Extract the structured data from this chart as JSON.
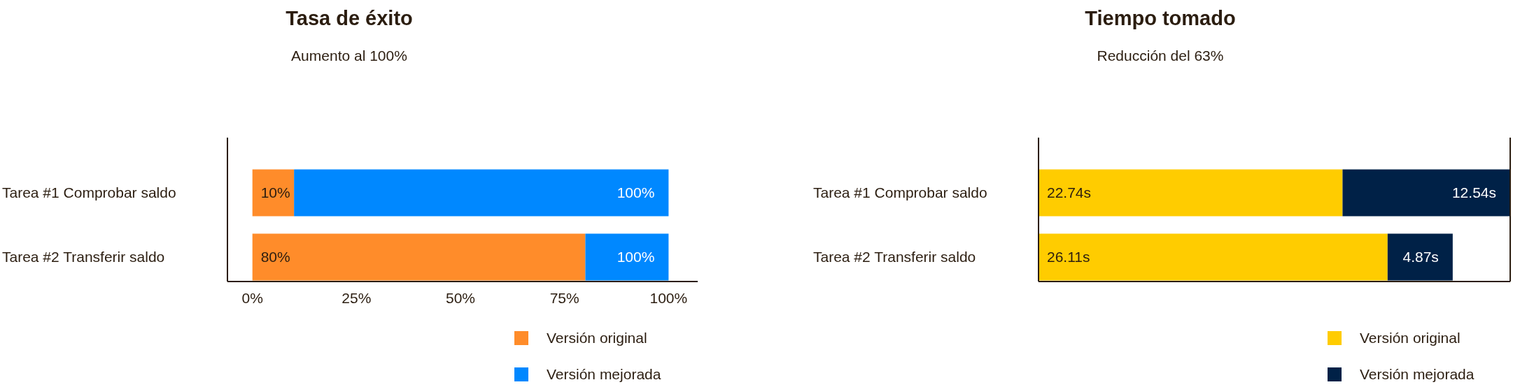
{
  "chart_data": [
    {
      "type": "bar",
      "orientation": "horizontal",
      "stacked": true,
      "title": "Tasa de éxito",
      "subtitle": "Aumento al 100%",
      "categories": [
        "Tarea #1 Comprobar saldo",
        "Tarea #2 Transferir saldo"
      ],
      "series": [
        {
          "name": "Versión original",
          "color": "#ff8c2a",
          "values": [
            10,
            80
          ],
          "value_labels": [
            "10%",
            "80%"
          ]
        },
        {
          "name": "Versión mejorada",
          "color": "#0088ff",
          "values": [
            90,
            20
          ]
        }
      ],
      "annotations": [
        {
          "text": "100%",
          "x": 100,
          "y": "Tarea #1 Comprobar saldo"
        },
        {
          "text": "100%",
          "x": 100,
          "y": "Tarea #2 Transferir saldo"
        }
      ],
      "xlim": [
        -6,
        107
      ],
      "xticks": [
        {
          "value": 0,
          "label": "0%"
        },
        {
          "value": 25,
          "label": "25%"
        },
        {
          "value": 50,
          "label": "50%"
        },
        {
          "value": 75,
          "label": "75%"
        },
        {
          "value": 100,
          "label": "100%"
        }
      ],
      "legend": "bottom"
    },
    {
      "type": "bar",
      "orientation": "horizontal",
      "stacked": true,
      "title": "Tiempo tomado",
      "subtitle": "Reducción del 63%",
      "categories": [
        "Tarea #1 Comprobar saldo",
        "Tarea #2 Transferir saldo"
      ],
      "series": [
        {
          "name": "Versión original",
          "color": "#ffcc00",
          "values": [
            22.74,
            26.11
          ],
          "value_labels": [
            "22.74s",
            "26.11s"
          ]
        },
        {
          "name": "Versión mejorada",
          "color": "#002147",
          "values": [
            12.54,
            4.87
          ],
          "value_labels": [
            "12.54s",
            "4.87s"
          ]
        }
      ],
      "legend": "bottom"
    }
  ]
}
